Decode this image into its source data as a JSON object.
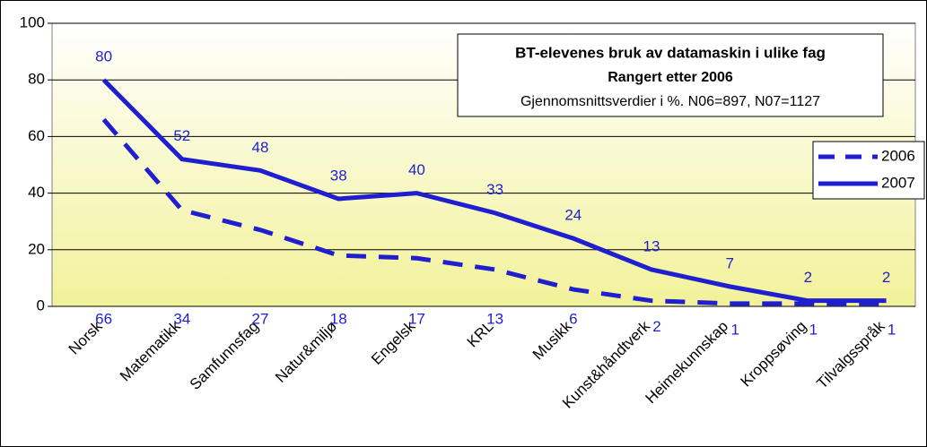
{
  "chart_data": {
    "type": "line",
    "title": "BT-elevenes bruk av datamaskin i ulike fag",
    "subtitle": "Rangert etter 2006",
    "annotation": "Gjennomsnittsverdier i %. N06=897, N07=1127",
    "categories": [
      "Norsk",
      "Matematikk",
      "Samfunnsfag",
      "Natur&miljø",
      "Engelsk",
      "KRL",
      "Musikk",
      "Kunst&håndtverk",
      "Heimekunnskap",
      "Kroppsøving",
      "Tilvalgsspråk"
    ],
    "series": [
      {
        "name": "2006",
        "color": "#1f1fd0",
        "dash": true,
        "values": [
          66,
          34,
          27,
          18,
          17,
          13,
          6,
          2,
          1,
          1,
          1
        ]
      },
      {
        "name": "2007",
        "color": "#1f1fd0",
        "dash": false,
        "values": [
          80,
          52,
          48,
          38,
          40,
          33,
          24,
          13,
          7,
          2,
          2
        ]
      }
    ],
    "ylim": [
      0,
      100
    ],
    "yticks": [
      0,
      20,
      40,
      60,
      80,
      100
    ],
    "grid": true,
    "legend": "right"
  }
}
